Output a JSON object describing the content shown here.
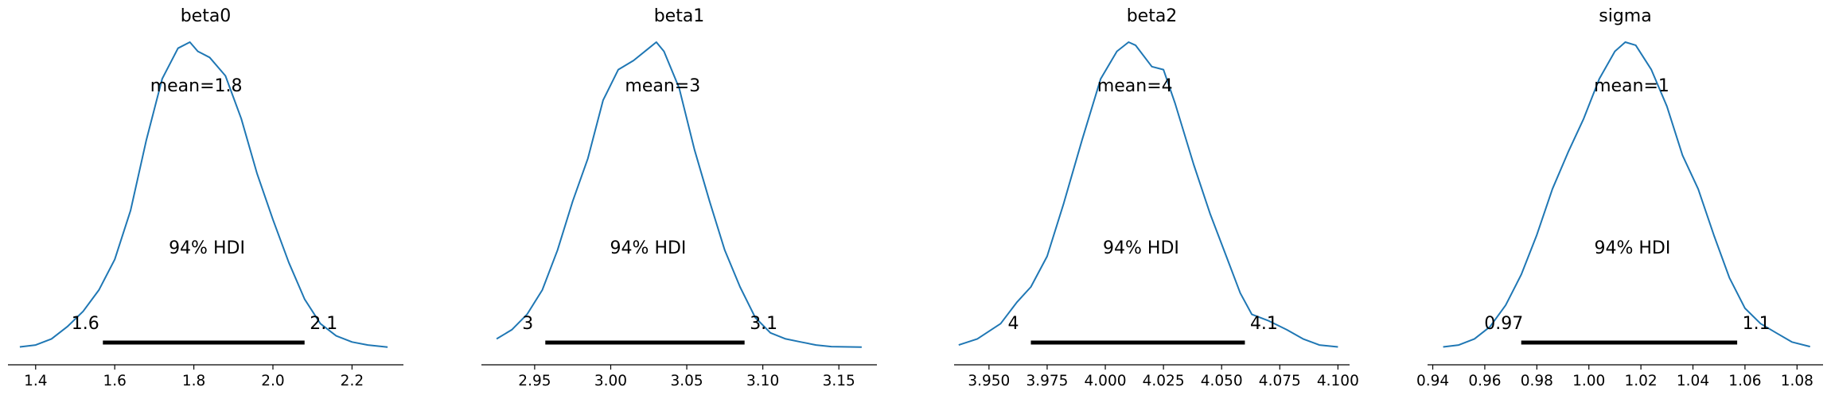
{
  "chart_data": [
    {
      "type": "area",
      "title": "beta0",
      "mean_label": "mean=1.8",
      "hdi_label": "94% HDI",
      "hdi_low_label": "1.6",
      "hdi_high_label": "2.1",
      "hdi": [
        1.57,
        2.08
      ],
      "xlim": [
        1.33,
        2.33
      ],
      "ticks": [
        1.4,
        1.6,
        1.8,
        2.0,
        2.2
      ],
      "tick_labels": [
        "1.4",
        "1.6",
        "1.8",
        "2.0",
        "2.2"
      ],
      "x": [
        1.36,
        1.4,
        1.44,
        1.48,
        1.52,
        1.56,
        1.6,
        1.64,
        1.68,
        1.72,
        1.76,
        1.79,
        1.81,
        1.84,
        1.88,
        1.92,
        1.96,
        2.0,
        2.04,
        2.08,
        2.12,
        2.16,
        2.2,
        2.24,
        2.29
      ],
      "y": [
        0.004,
        0.01,
        0.03,
        0.07,
        0.12,
        0.19,
        0.29,
        0.45,
        0.68,
        0.88,
        0.98,
        1.0,
        0.97,
        0.95,
        0.89,
        0.75,
        0.57,
        0.42,
        0.28,
        0.16,
        0.08,
        0.04,
        0.02,
        0.01,
        0.003
      ],
      "line_color": "#1f77b4"
    },
    {
      "type": "area",
      "title": "beta1",
      "mean_label": "mean=3",
      "hdi_label": "94% HDI",
      "hdi_low_label": "3",
      "hdi_high_label": "3.1",
      "hdi": [
        2.957,
        3.088
      ],
      "xlim": [
        2.915,
        3.175
      ],
      "ticks": [
        2.95,
        3.0,
        3.05,
        3.1,
        3.15
      ],
      "tick_labels": [
        "2.95",
        "3.00",
        "3.05",
        "3.10",
        "3.15"
      ],
      "x": [
        2.925,
        2.935,
        2.945,
        2.955,
        2.965,
        2.975,
        2.985,
        2.995,
        3.005,
        3.015,
        3.025,
        3.03,
        3.035,
        3.045,
        3.055,
        3.065,
        3.075,
        3.085,
        3.095,
        3.105,
        3.115,
        3.125,
        3.135,
        3.145,
        3.165
      ],
      "y": [
        0.03,
        0.06,
        0.11,
        0.19,
        0.32,
        0.48,
        0.62,
        0.81,
        0.91,
        0.94,
        0.98,
        1.0,
        0.97,
        0.85,
        0.65,
        0.48,
        0.32,
        0.2,
        0.1,
        0.05,
        0.03,
        0.02,
        0.01,
        0.005,
        0.003
      ],
      "line_color": "#1f77b4"
    },
    {
      "type": "area",
      "title": "beta2",
      "mean_label": "mean=4",
      "hdi_label": "94% HDI",
      "hdi_low_label": "4",
      "hdi_high_label": "4.1",
      "hdi": [
        3.968,
        4.06
      ],
      "xlim": [
        3.935,
        4.105
      ],
      "ticks": [
        3.95,
        3.975,
        4.0,
        4.025,
        4.05,
        4.075,
        4.1
      ],
      "tick_labels": [
        "3.950",
        "3.975",
        "4.000",
        "4.025",
        "4.050",
        "4.075",
        "4.100"
      ],
      "x": [
        3.937,
        3.945,
        3.955,
        3.962,
        3.968,
        3.975,
        3.982,
        3.99,
        3.998,
        4.005,
        4.01,
        4.013,
        4.02,
        4.025,
        4.03,
        4.038,
        4.045,
        4.052,
        4.058,
        4.063,
        4.07,
        4.078,
        4.085,
        4.092,
        4.1
      ],
      "y": [
        0.01,
        0.03,
        0.08,
        0.15,
        0.2,
        0.3,
        0.47,
        0.68,
        0.88,
        0.97,
        1.0,
        0.99,
        0.92,
        0.91,
        0.8,
        0.6,
        0.44,
        0.3,
        0.18,
        0.11,
        0.09,
        0.06,
        0.03,
        0.01,
        0.004
      ],
      "line_color": "#1f77b4"
    },
    {
      "type": "area",
      "title": "sigma",
      "mean_label": "mean=1",
      "hdi_label": "94% HDI",
      "hdi_low_label": "0.97",
      "hdi_high_label": "1.1",
      "hdi": [
        0.974,
        1.057
      ],
      "xlim": [
        0.938,
        1.09
      ],
      "ticks": [
        0.94,
        0.96,
        0.98,
        1.0,
        1.02,
        1.04,
        1.06,
        1.08
      ],
      "tick_labels": [
        "0.94",
        "0.96",
        "0.98",
        "1.00",
        "1.02",
        "1.04",
        "1.06",
        "1.08"
      ],
      "x": [
        0.944,
        0.95,
        0.956,
        0.962,
        0.968,
        0.974,
        0.98,
        0.986,
        0.992,
        0.998,
        1.004,
        1.01,
        1.014,
        1.018,
        1.024,
        1.03,
        1.036,
        1.042,
        1.048,
        1.054,
        1.06,
        1.066,
        1.072,
        1.078,
        1.085
      ],
      "y": [
        0.004,
        0.01,
        0.03,
        0.07,
        0.14,
        0.24,
        0.37,
        0.52,
        0.64,
        0.75,
        0.88,
        0.97,
        1.0,
        0.99,
        0.91,
        0.79,
        0.63,
        0.52,
        0.37,
        0.23,
        0.13,
        0.08,
        0.05,
        0.02,
        0.005
      ],
      "line_color": "#1f77b4"
    }
  ]
}
